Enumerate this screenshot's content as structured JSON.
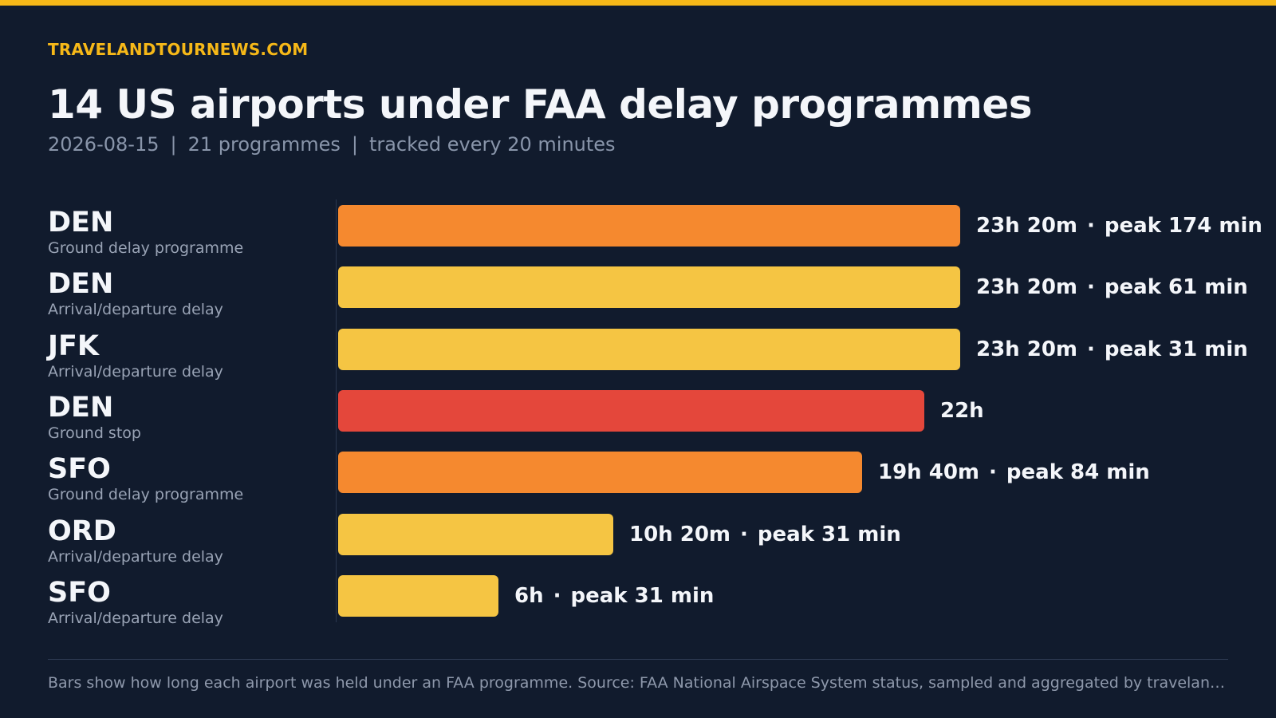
{
  "brand": "TRAVELANDTOURNEWS.COM",
  "colors": {
    "accent": "#f6b818",
    "background": "#111b2d",
    "ground_delay": "#f5892f",
    "arrival_departure": "#f5c543",
    "ground_stop": "#e4473b"
  },
  "header": {
    "title": "14 US airports under FAA delay programmes",
    "date": "2026-08-15",
    "programmes": "21 programmes",
    "tracking": "tracked every 20 minutes",
    "separator": "|"
  },
  "footer": {
    "note": "Bars show how long each airport was held under an FAA programme. Source: FAA National Airspace System status, sampled and aggregated by travelandtour…"
  },
  "chart_data": {
    "type": "bar",
    "orientation": "horizontal",
    "unit": "minutes",
    "categories": [
      "DEN",
      "DEN",
      "JFK",
      "DEN",
      "SFO",
      "ORD",
      "SFO"
    ],
    "bars": [
      {
        "airport": "DEN",
        "programme": "Ground delay programme",
        "duration_min": 1400,
        "duration_label": "23h 20m",
        "peak_label": "peak 174 min",
        "peak_delay_min": 174,
        "color": "#f5892f"
      },
      {
        "airport": "DEN",
        "programme": "Arrival/departure delay",
        "duration_min": 1400,
        "duration_label": "23h 20m",
        "peak_label": "peak 61 min",
        "peak_delay_min": 61,
        "color": "#f5c543"
      },
      {
        "airport": "JFK",
        "programme": "Arrival/departure delay",
        "duration_min": 1400,
        "duration_label": "23h 20m",
        "peak_label": "peak 31 min",
        "peak_delay_min": 31,
        "color": "#f5c543"
      },
      {
        "airport": "DEN",
        "programme": "Ground stop",
        "duration_min": 1320,
        "duration_label": "22h",
        "peak_label": "",
        "peak_delay_min": null,
        "color": "#e4473b"
      },
      {
        "airport": "SFO",
        "programme": "Ground delay programme",
        "duration_min": 1180,
        "duration_label": "19h 40m",
        "peak_label": "peak 84 min",
        "peak_delay_min": 84,
        "color": "#f5892f"
      },
      {
        "airport": "ORD",
        "programme": "Arrival/departure delay",
        "duration_min": 620,
        "duration_label": "10h 20m",
        "peak_label": "peak 31 min",
        "peak_delay_min": 31,
        "color": "#f5c543"
      },
      {
        "airport": "SFO",
        "programme": "Arrival/departure delay",
        "duration_min": 360,
        "duration_label": "6h",
        "peak_label": "peak 31 min",
        "peak_delay_min": 31,
        "color": "#f5c543"
      }
    ],
    "value_separator": "·",
    "xlim": [
      0,
      1400
    ],
    "grid": false,
    "legend": "none"
  }
}
